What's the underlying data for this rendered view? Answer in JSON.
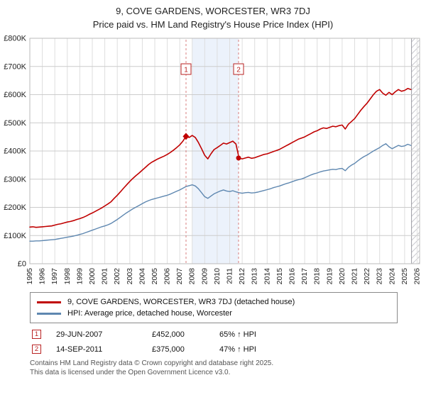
{
  "title": {
    "line1": "9, COVE GARDENS, WORCESTER, WR3 7DJ",
    "line2": "Price paid vs. HM Land Registry's House Price Index (HPI)"
  },
  "chart_data": {
    "type": "line",
    "title": "9, COVE GARDENS, WORCESTER, WR3 7DJ — Price paid vs. HPI",
    "x_range": [
      1995,
      2026.2
    ],
    "y_range": [
      0,
      800000
    ],
    "grid": true,
    "legend_position": "bottom",
    "x_ticks": [
      1995,
      1996,
      1997,
      1998,
      1999,
      2000,
      2001,
      2002,
      2003,
      2004,
      2005,
      2006,
      2007,
      2008,
      2009,
      2010,
      2011,
      2012,
      2013,
      2014,
      2015,
      2016,
      2017,
      2018,
      2019,
      2020,
      2021,
      2022,
      2023,
      2024,
      2025,
      2026
    ],
    "y_ticks": [
      {
        "v": 0,
        "label": "£0"
      },
      {
        "v": 100,
        "label": "£100K"
      },
      {
        "v": 200,
        "label": "£200K"
      },
      {
        "v": 300,
        "label": "£300K"
      },
      {
        "v": 400,
        "label": "£400K"
      },
      {
        "v": 500,
        "label": "£500K"
      },
      {
        "v": 600,
        "label": "£600K"
      },
      {
        "v": 700,
        "label": "£700K"
      },
      {
        "v": 800,
        "label": "£800K"
      }
    ],
    "series": [
      {
        "name": "9, COVE GARDENS, WORCESTER, WR3 7DJ (detached house)",
        "data_name": "series-line-property",
        "color": "#c00000",
        "width": 1.6,
        "x_start": 1995,
        "x_step": 0.25,
        "values_k": [
          130,
          131,
          129,
          130,
          131,
          132,
          133,
          134,
          137,
          140,
          142,
          145,
          148,
          150,
          153,
          157,
          160,
          164,
          169,
          175,
          180,
          186,
          192,
          198,
          205,
          212,
          220,
          232,
          243,
          255,
          268,
          280,
          292,
          303,
          313,
          322,
          332,
          342,
          352,
          360,
          366,
          372,
          377,
          382,
          388,
          395,
          403,
          412,
          422,
          435,
          452,
          448,
          455,
          448,
          430,
          408,
          385,
          372,
          390,
          405,
          412,
          420,
          428,
          425,
          430,
          435,
          425,
          375,
          372,
          375,
          378,
          374,
          376,
          380,
          384,
          388,
          390,
          394,
          398,
          402,
          406,
          412,
          418,
          424,
          430,
          436,
          442,
          446,
          450,
          456,
          462,
          468,
          472,
          478,
          482,
          480,
          484,
          488,
          486,
          490,
          492,
          478,
          495,
          505,
          515,
          530,
          545,
          558,
          570,
          585,
          600,
          612,
          618,
          605,
          598,
          608,
          600,
          610,
          618,
          612,
          615,
          622,
          618
        ]
      },
      {
        "name": "HPI: Average price, detached house, Worcester",
        "data_name": "series-line-hpi",
        "color": "#5e87b0",
        "width": 1.4,
        "x_start": 1995,
        "x_step": 0.25,
        "values_k": [
          80,
          80,
          81,
          81,
          82,
          83,
          84,
          85,
          86,
          88,
          90,
          92,
          94,
          96,
          98,
          101,
          104,
          107,
          111,
          115,
          119,
          123,
          127,
          131,
          134,
          138,
          143,
          150,
          157,
          165,
          173,
          181,
          188,
          195,
          201,
          207,
          213,
          219,
          224,
          228,
          231,
          234,
          237,
          240,
          243,
          247,
          252,
          257,
          262,
          268,
          274,
          277,
          280,
          276,
          266,
          252,
          238,
          232,
          240,
          248,
          253,
          258,
          262,
          258,
          256,
          259,
          255,
          252,
          250,
          252,
          253,
          251,
          252,
          254,
          257,
          260,
          263,
          266,
          270,
          273,
          276,
          280,
          284,
          287,
          291,
          295,
          298,
          301,
          305,
          310,
          315,
          319,
          322,
          326,
          329,
          331,
          333,
          335,
          334,
          337,
          338,
          330,
          342,
          350,
          356,
          365,
          373,
          380,
          386,
          393,
          400,
          406,
          412,
          420,
          426,
          415,
          408,
          414,
          420,
          416,
          418,
          424,
          420
        ]
      }
    ],
    "markers": [
      {
        "label": "1",
        "x": 2007.5,
        "value_k": 452,
        "shape": "diamond"
      },
      {
        "label": "2",
        "x": 2011.71,
        "value_k": 375,
        "shape": "circle"
      }
    ],
    "shaded_region": [
      2008.0,
      2011.71
    ],
    "hatch_region": [
      2025.55,
      2026.2
    ]
  },
  "legend": {
    "items": [
      {
        "label": "9, COVE GARDENS, WORCESTER, WR3 7DJ (detached house)",
        "color": "#c00000"
      },
      {
        "label": "HPI: Average price, detached house, Worcester",
        "color": "#5e87b0"
      }
    ]
  },
  "annotations": [
    {
      "num": "1",
      "date": "29-JUN-2007",
      "price": "£452,000",
      "hpi": "65% ↑ HPI"
    },
    {
      "num": "2",
      "date": "14-SEP-2011",
      "price": "£375,000",
      "hpi": "47% ↑ HPI"
    }
  ],
  "footer": {
    "line1": "Contains HM Land Registry data © Crown copyright and database right 2025.",
    "line2": "This data is licensed under the Open Government Licence v3.0."
  }
}
